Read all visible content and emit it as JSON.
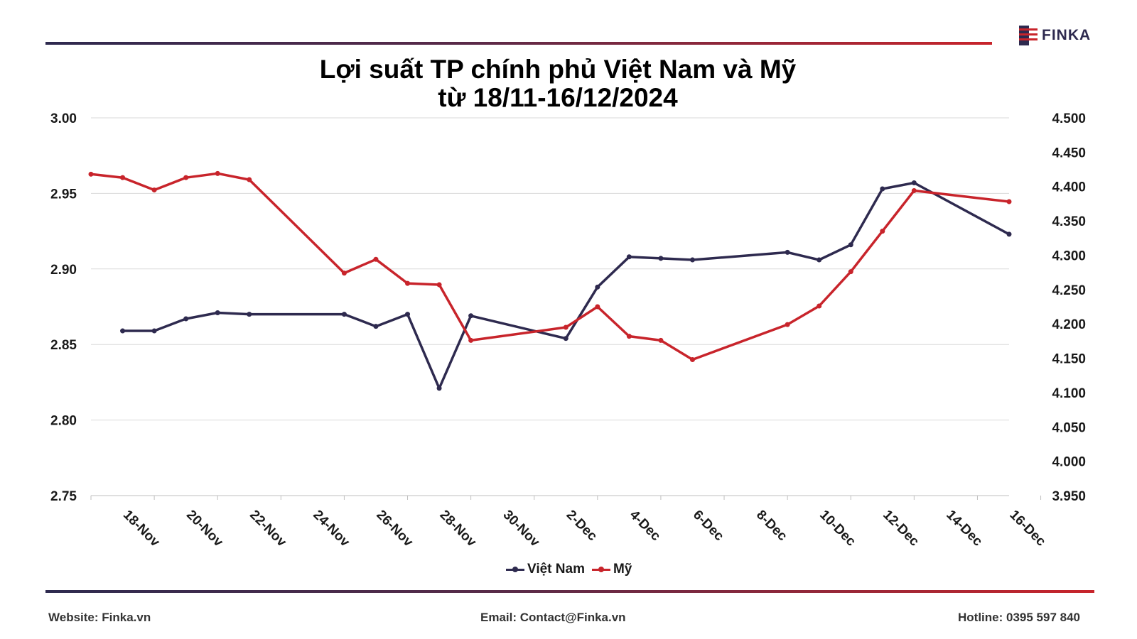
{
  "header": {
    "logo_text": "FINKA",
    "brand_color": "#2e2a4f",
    "accent_color": "#c8242b"
  },
  "title": {
    "line1": "Lợi suất TP chính phủ Việt Nam và Mỹ",
    "line2": "từ 18/11-16/12/2024"
  },
  "chart_data": {
    "type": "line",
    "x_tick_labels": [
      "18-Nov",
      "20-Nov",
      "22-Nov",
      "24-Nov",
      "26-Nov",
      "28-Nov",
      "30-Nov",
      "2-Dec",
      "4-Dec",
      "6-Dec",
      "8-Dec",
      "10-Dec",
      "12-Dec",
      "14-Dec",
      "16-Dec"
    ],
    "x_start": "2024-11-17",
    "x_end": "2024-12-16",
    "y_left": {
      "min": 2.75,
      "max": 3.0,
      "step": 0.05,
      "ticks": [
        "2.75",
        "2.80",
        "2.85",
        "2.90",
        "2.95",
        "3.00"
      ]
    },
    "y_right": {
      "min": 3.95,
      "max": 4.5,
      "step": 0.05,
      "ticks": [
        "3.950",
        "4.000",
        "4.050",
        "4.100",
        "4.150",
        "4.200",
        "4.250",
        "4.300",
        "4.350",
        "4.400",
        "4.450",
        "4.500"
      ]
    },
    "grid": true,
    "legend_position": "bottom",
    "series": [
      {
        "name": "Việt Nam",
        "axis": "left",
        "color": "#2e2a4f",
        "points": [
          [
            "2024-11-18",
            2.859
          ],
          [
            "2024-11-19",
            2.859
          ],
          [
            "2024-11-20",
            2.867
          ],
          [
            "2024-11-21",
            2.871
          ],
          [
            "2024-11-22",
            2.87
          ],
          [
            "2024-11-25",
            2.87
          ],
          [
            "2024-11-26",
            2.862
          ],
          [
            "2024-11-27",
            2.87
          ],
          [
            "2024-11-28",
            2.821
          ],
          [
            "2024-11-29",
            2.869
          ],
          [
            "2024-12-02",
            2.854
          ],
          [
            "2024-12-03",
            2.888
          ],
          [
            "2024-12-04",
            2.908
          ],
          [
            "2024-12-05",
            2.907
          ],
          [
            "2024-12-06",
            2.906
          ],
          [
            "2024-12-09",
            2.911
          ],
          [
            "2024-12-10",
            2.906
          ],
          [
            "2024-12-11",
            2.916
          ],
          [
            "2024-12-12",
            2.953
          ],
          [
            "2024-12-13",
            2.957
          ],
          [
            "2024-12-16",
            2.923
          ]
        ]
      },
      {
        "name": "Mỹ",
        "axis": "right",
        "color": "#c8242b",
        "points": [
          [
            "2024-11-17",
            4.418
          ],
          [
            "2024-11-18",
            4.413
          ],
          [
            "2024-11-19",
            4.395
          ],
          [
            "2024-11-20",
            4.413
          ],
          [
            "2024-11-21",
            4.419
          ],
          [
            "2024-11-22",
            4.41
          ],
          [
            "2024-11-25",
            4.274
          ],
          [
            "2024-11-26",
            4.294
          ],
          [
            "2024-11-27",
            4.259
          ],
          [
            "2024-11-28",
            4.257
          ],
          [
            "2024-11-29",
            4.176
          ],
          [
            "2024-12-02",
            4.195
          ],
          [
            "2024-12-03",
            4.225
          ],
          [
            "2024-12-04",
            4.182
          ],
          [
            "2024-12-05",
            4.176
          ],
          [
            "2024-12-06",
            4.148
          ],
          [
            "2024-12-09",
            4.199
          ],
          [
            "2024-12-10",
            4.226
          ],
          [
            "2024-12-11",
            4.276
          ],
          [
            "2024-12-12",
            4.335
          ],
          [
            "2024-12-13",
            4.394
          ],
          [
            "2024-12-16",
            4.378
          ]
        ]
      }
    ]
  },
  "footer": {
    "website": "Website: Finka.vn",
    "email": "Email: Contact@Finka.vn",
    "hotline": "Hotline: 0395 597 840"
  }
}
